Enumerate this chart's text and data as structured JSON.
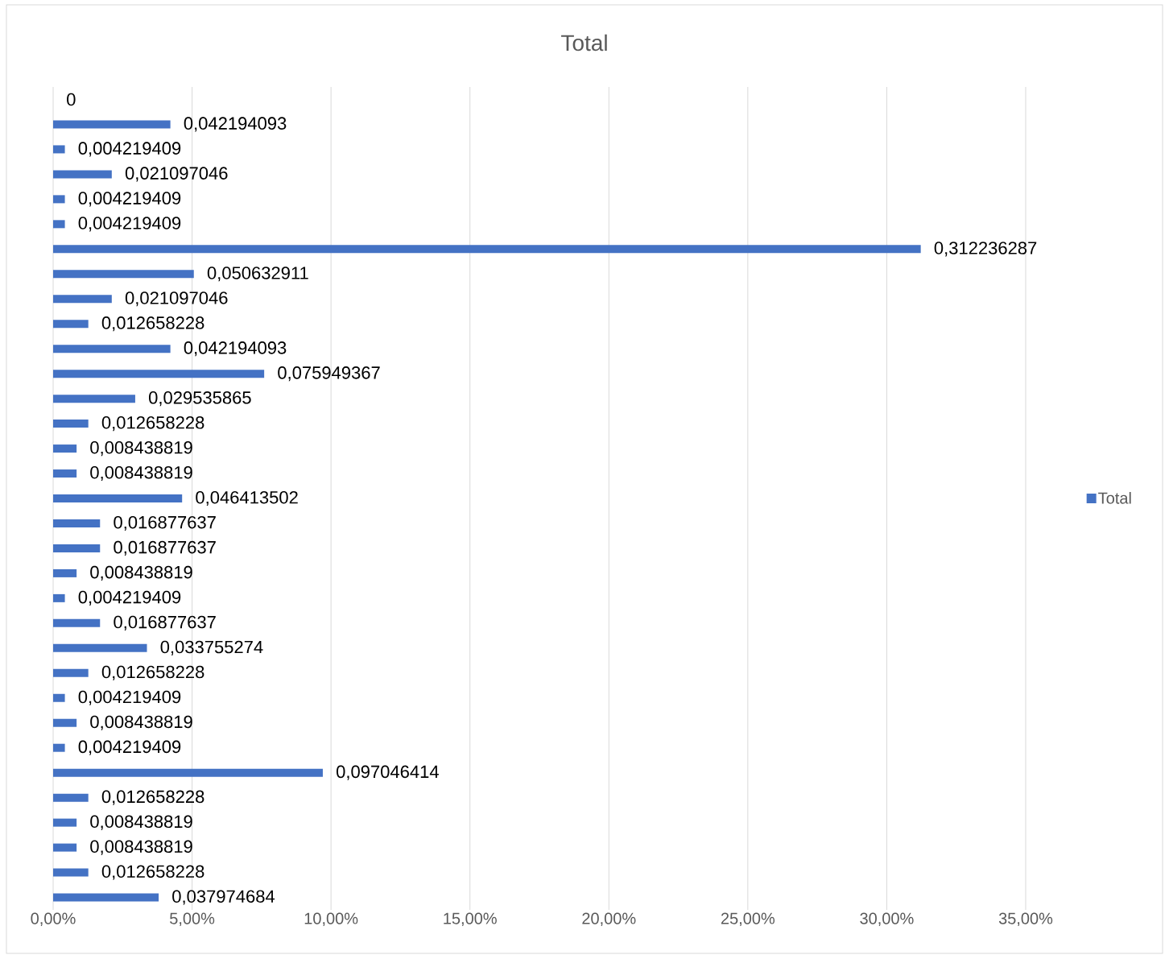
{
  "chart_data": {
    "type": "bar",
    "title": "Total",
    "orientation": "horizontal",
    "categories": [
      null,
      null,
      null,
      null,
      null,
      null,
      null,
      null,
      null,
      null,
      null,
      null,
      null,
      null,
      null,
      null,
      null,
      null,
      null,
      null,
      null,
      null,
      null,
      null,
      null,
      null,
      null,
      null,
      null,
      null,
      null,
      null,
      null
    ],
    "series": [
      {
        "name": "Total",
        "color": "#4472c4",
        "values": [
          0,
          0.042194093,
          0.004219409,
          0.021097046,
          0.004219409,
          0.004219409,
          0.312236287,
          0.050632911,
          0.021097046,
          0.012658228,
          0.042194093,
          0.075949367,
          0.029535865,
          0.012658228,
          0.008438819,
          0.008438819,
          0.046413502,
          0.016877637,
          0.016877637,
          0.008438819,
          0.004219409,
          0.016877637,
          0.033755274,
          0.012658228,
          0.004219409,
          0.008438819,
          0.004219409,
          0.097046414,
          0.012658228,
          0.008438819,
          0.008438819,
          0.012658228,
          0.037974684
        ],
        "value_labels": [
          "0",
          "0,042194093",
          "0,004219409",
          "0,021097046",
          "0,004219409",
          "0,004219409",
          "0,312236287",
          "0,050632911",
          "0,021097046",
          "0,012658228",
          "0,042194093",
          "0,075949367",
          "0,029535865",
          "0,012658228",
          "0,008438819",
          "0,008438819",
          "0,046413502",
          "0,016877637",
          "0,016877637",
          "0,008438819",
          "0,004219409",
          "0,016877637",
          "0,033755274",
          "0,012658228",
          "0,004219409",
          "0,008438819",
          "0,004219409",
          "0,097046414",
          "0,012658228",
          "0,008438819",
          "0,008438819",
          "0,012658228",
          "0,037974684"
        ]
      }
    ],
    "xticks": [
      {
        "value": 0,
        "label": "0,00%"
      },
      {
        "value": 0.05,
        "label": "5,00%"
      },
      {
        "value": 0.1,
        "label": "10,00%"
      },
      {
        "value": 0.15,
        "label": "15,00%"
      },
      {
        "value": 0.2,
        "label": "20,00%"
      },
      {
        "value": 0.25,
        "label": "25,00%"
      },
      {
        "value": 0.3,
        "label": "30,00%"
      },
      {
        "value": 0.35,
        "label": "35,00%"
      }
    ],
    "xlim": [
      0,
      0.35
    ],
    "grid": "x",
    "legend": "right"
  }
}
